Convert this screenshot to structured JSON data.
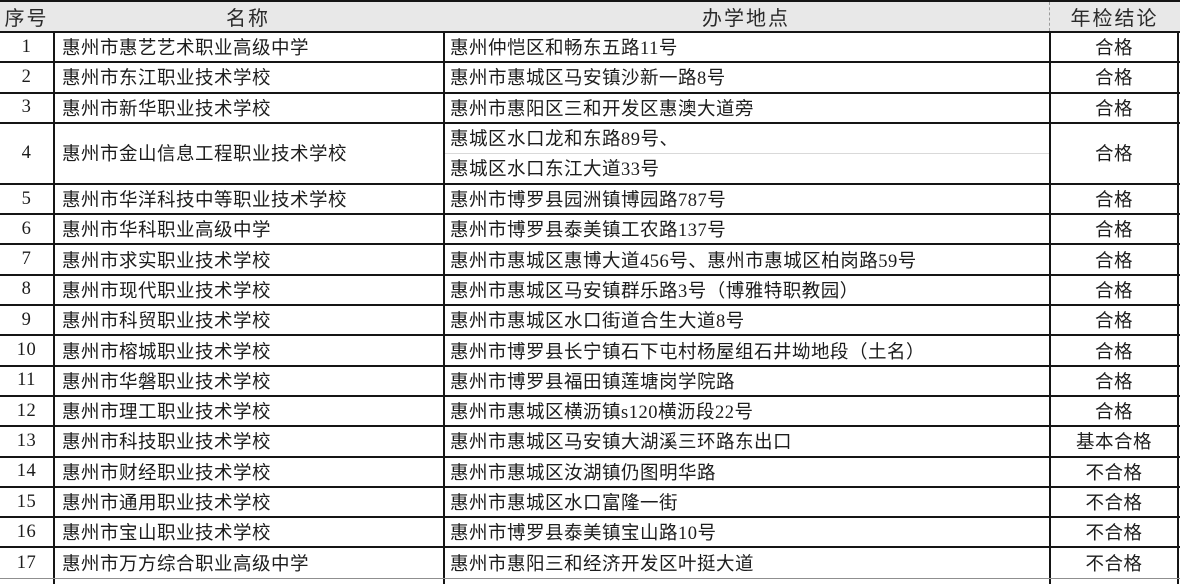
{
  "colors": {
    "header_bg": "#e8e8e8",
    "border": "#151515",
    "text": "#1c1c1c",
    "faint_gridline": "#d9d9d9",
    "header_dashed_divider": "#9a9a9a"
  },
  "table": {
    "header": {
      "no": "序号",
      "name": "名称",
      "address": "办学地点",
      "result": "年检结论"
    },
    "rows": [
      {
        "no": "1",
        "name": "惠州市惠艺艺术职业高级中学",
        "address": [
          "惠州仲恺区和畅东五路11号"
        ],
        "result": "合格"
      },
      {
        "no": "2",
        "name": "惠州市东江职业技术学校",
        "address": [
          "惠州市惠城区马安镇沙新一路8号"
        ],
        "result": "合格"
      },
      {
        "no": "3",
        "name": "惠州市新华职业技术学校",
        "address": [
          "惠州市惠阳区三和开发区惠澳大道旁"
        ],
        "result": "合格"
      },
      {
        "no": "4",
        "name": "惠州市金山信息工程职业技术学校",
        "address": [
          "惠城区水口龙和东路89号、",
          "惠城区水口东江大道33号"
        ],
        "result": "合格"
      },
      {
        "no": "5",
        "name": "惠州市华洋科技中等职业技术学校",
        "address": [
          "惠州市博罗县园洲镇博园路787号"
        ],
        "result": "合格"
      },
      {
        "no": "6",
        "name": "惠州市华科职业高级中学",
        "address": [
          "惠州市博罗县泰美镇工农路137号"
        ],
        "result": "合格"
      },
      {
        "no": "7",
        "name": "惠州市求实职业技术学校",
        "address": [
          "惠州市惠城区惠博大道456号、惠州市惠城区柏岗路59号"
        ],
        "result": "合格"
      },
      {
        "no": "8",
        "name": "惠州市现代职业技术学校",
        "address": [
          "惠州市惠城区马安镇群乐路3号（博雅特职教园）"
        ],
        "result": "合格"
      },
      {
        "no": "9",
        "name": "惠州市科贸职业技术学校",
        "address": [
          "惠州市惠城区水口街道合生大道8号"
        ],
        "result": "合格"
      },
      {
        "no": "10",
        "name": "惠州市榕城职业技术学校",
        "address": [
          "惠州市博罗县长宁镇石下屯村杨屋组石井坳地段（土名）"
        ],
        "result": "合格"
      },
      {
        "no": "11",
        "name": "惠州市华磐职业技术学校",
        "address": [
          "惠州市博罗县福田镇莲塘岗学院路"
        ],
        "result": "合格"
      },
      {
        "no": "12",
        "name": "惠州市理工职业技术学校",
        "address": [
          "惠州市惠城区横沥镇s120横沥段22号"
        ],
        "result": "合格"
      },
      {
        "no": "13",
        "name": "惠州市科技职业技术学校",
        "address": [
          "惠州市惠城区马安镇大湖溪三环路东出口"
        ],
        "result": "基本合格"
      },
      {
        "no": "14",
        "name": "惠州市财经职业技术学校",
        "address": [
          "惠州市惠城区汝湖镇仍图明华路"
        ],
        "result": "不合格"
      },
      {
        "no": "15",
        "name": "惠州市通用职业技术学校",
        "address": [
          "惠州市惠城区水口富隆一街"
        ],
        "result": "不合格"
      },
      {
        "no": "16",
        "name": "惠州市宝山职业技术学校",
        "address": [
          "惠州市博罗县泰美镇宝山路10号"
        ],
        "result": "不合格"
      },
      {
        "no": "17",
        "name": "惠州市万方综合职业高级中学",
        "address": [
          "惠州市惠阳三和经济开发区叶挺大道"
        ],
        "result": "不合格"
      }
    ]
  }
}
